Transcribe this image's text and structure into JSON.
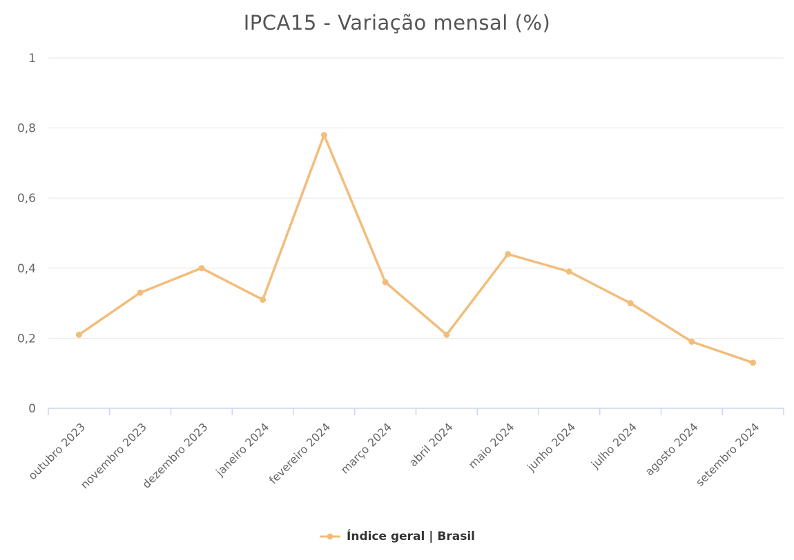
{
  "chart_data": {
    "type": "line",
    "title": "IPCA15 - Variação mensal (%)",
    "categories": [
      "outubro 2023",
      "novembro 2023",
      "dezembro 2023",
      "janeiro 2024",
      "fevereiro 2024",
      "março 2024",
      "abril 2024",
      "maio 2024",
      "junho 2024",
      "julho 2024",
      "agosto 2024",
      "setembro 2024"
    ],
    "series": [
      {
        "name": "Índice geral | Brasil",
        "values": [
          0.21,
          0.33,
          0.4,
          0.31,
          0.78,
          0.36,
          0.21,
          0.44,
          0.39,
          0.3,
          0.19,
          0.13
        ],
        "color": "#f2bd7a"
      }
    ],
    "xlabel": "",
    "ylabel": "",
    "ylim": [
      0,
      1
    ],
    "yticks": [
      0,
      0.2,
      0.4,
      0.6,
      0.8,
      1
    ],
    "ytick_labels": [
      "0",
      "0,2",
      "0,4",
      "0,6",
      "0,8",
      "1"
    ],
    "grid": true,
    "legend_position": "bottom"
  },
  "legend": {
    "label": "Índice geral | Brasil"
  },
  "colors": {
    "line": "#f2bd7a",
    "title": "#555555",
    "axis_label": "#666666",
    "grid_line": "#e6e6e6",
    "axis_line": "#ccd6eb",
    "legend_text": "#333333"
  }
}
